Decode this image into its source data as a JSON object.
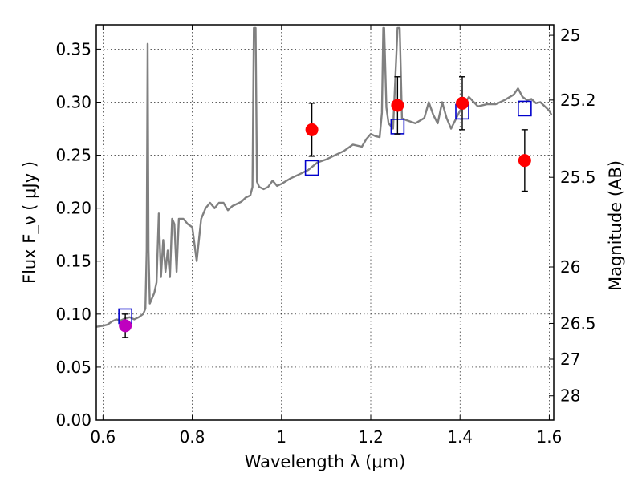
{
  "chart_data": {
    "type": "line",
    "xlabel": "Wavelength λ (μm)",
    "ylabel": "Flux F_ν ( μJy )",
    "ylabel_right": "Magnitude (AB)",
    "xlim": [
      0.585,
      1.61
    ],
    "ylim": [
      0.0,
      0.373
    ],
    "grid": true,
    "x_ticks": [
      0.6,
      0.8,
      1.0,
      1.2,
      1.4,
      1.6
    ],
    "x_tick_labels": [
      "0.6",
      "0.8",
      "1",
      "1.2",
      "1.4",
      "1.6"
    ],
    "y_ticks": [
      0.0,
      0.05,
      0.1,
      0.15,
      0.2,
      0.25,
      0.3,
      0.35
    ],
    "y_tick_labels": [
      "0.00",
      "0.05",
      "0.10",
      "0.15",
      "0.20",
      "0.25",
      "0.30",
      "0.35"
    ],
    "right_ticks": [
      {
        "label": "25",
        "flux": 0.3631
      },
      {
        "label": "25.2",
        "flux": 0.302
      },
      {
        "label": "25.5",
        "flux": 0.2291
      },
      {
        "label": "26",
        "flux": 0.1445
      },
      {
        "label": "26.5",
        "flux": 0.0912
      },
      {
        "label": "27",
        "flux": 0.0575
      },
      {
        "label": "28",
        "flux": 0.0229
      }
    ],
    "colors": {
      "model_line": "#808080",
      "observed_points": "#ff0000",
      "optical_point": "#bf00bf",
      "model_photometry": "#0000cc",
      "error_bars": "#000000"
    },
    "series": [
      {
        "kind": "model_spectrum",
        "x": [
          0.585,
          0.6,
          0.61,
          0.62,
          0.63,
          0.64,
          0.65,
          0.66,
          0.67,
          0.68,
          0.69,
          0.695,
          0.698,
          0.7,
          0.702,
          0.705,
          0.71,
          0.715,
          0.72,
          0.725,
          0.73,
          0.735,
          0.74,
          0.745,
          0.75,
          0.755,
          0.76,
          0.765,
          0.77,
          0.775,
          0.78,
          0.79,
          0.8,
          0.81,
          0.82,
          0.83,
          0.84,
          0.85,
          0.86,
          0.87,
          0.88,
          0.89,
          0.9,
          0.91,
          0.92,
          0.93,
          0.935,
          0.938,
          0.94,
          0.942,
          0.945,
          0.95,
          0.96,
          0.97,
          0.98,
          0.99,
          1.0,
          1.02,
          1.04,
          1.06,
          1.08,
          1.1,
          1.12,
          1.14,
          1.16,
          1.18,
          1.19,
          1.2,
          1.21,
          1.22,
          1.225,
          1.228,
          1.23,
          1.235,
          1.24,
          1.25,
          1.26,
          1.265,
          1.27,
          1.28,
          1.3,
          1.32,
          1.33,
          1.34,
          1.35,
          1.36,
          1.37,
          1.38,
          1.4,
          1.42,
          1.44,
          1.46,
          1.48,
          1.5,
          1.52,
          1.53,
          1.54,
          1.55,
          1.56,
          1.57,
          1.58,
          1.59,
          1.6,
          1.605
        ],
        "y": [
          0.088,
          0.089,
          0.09,
          0.093,
          0.095,
          0.094,
          0.096,
          0.097,
          0.095,
          0.097,
          0.1,
          0.105,
          0.16,
          0.355,
          0.16,
          0.11,
          0.115,
          0.12,
          0.13,
          0.195,
          0.135,
          0.17,
          0.14,
          0.16,
          0.135,
          0.19,
          0.185,
          0.14,
          0.19,
          0.19,
          0.19,
          0.185,
          0.182,
          0.15,
          0.19,
          0.2,
          0.205,
          0.2,
          0.205,
          0.205,
          0.198,
          0.202,
          0.204,
          0.206,
          0.21,
          0.212,
          0.22,
          0.37,
          0.37,
          0.37,
          0.225,
          0.22,
          0.218,
          0.22,
          0.226,
          0.221,
          0.223,
          0.228,
          0.232,
          0.236,
          0.243,
          0.246,
          0.25,
          0.254,
          0.26,
          0.258,
          0.265,
          0.27,
          0.268,
          0.267,
          0.29,
          0.37,
          0.37,
          0.295,
          0.28,
          0.275,
          0.37,
          0.37,
          0.285,
          0.283,
          0.28,
          0.285,
          0.3,
          0.288,
          0.28,
          0.3,
          0.285,
          0.275,
          0.292,
          0.305,
          0.296,
          0.298,
          0.298,
          0.302,
          0.307,
          0.313,
          0.305,
          0.302,
          0.303,
          0.299,
          0.3,
          0.296,
          0.292,
          0.288
        ]
      },
      {
        "kind": "model_photometry",
        "x": [
          0.65,
          1.068,
          1.26,
          1.405,
          1.545
        ],
        "y": [
          0.098,
          0.238,
          0.277,
          0.291,
          0.294
        ]
      },
      {
        "kind": "observed_photometry",
        "x": [
          1.068,
          1.26,
          1.405,
          1.545
        ],
        "y": [
          0.274,
          0.297,
          0.299,
          0.245
        ],
        "yerr": [
          0.025,
          0.027,
          0.025,
          0.029
        ]
      },
      {
        "kind": "optical_photometry",
        "x": [
          0.65
        ],
        "y": [
          0.089
        ],
        "yerr": [
          0.011
        ]
      }
    ]
  }
}
